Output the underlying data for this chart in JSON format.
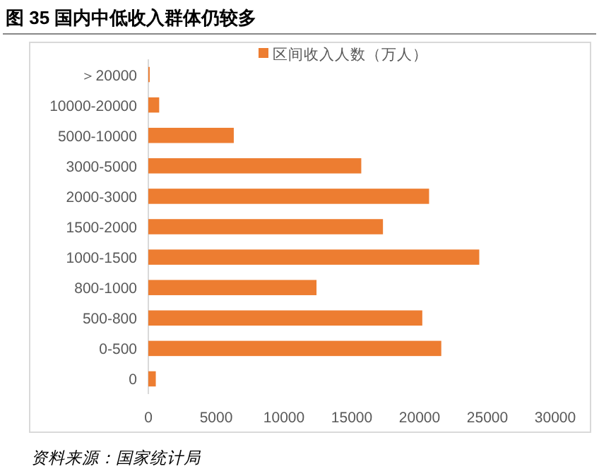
{
  "chart_data": {
    "type": "bar",
    "orientation": "horizontal",
    "title": "图 35 国内中低收入群体仍较多",
    "categories": [
      "＞20000",
      "10000-20000",
      "5000-10000",
      "3000-5000",
      "2000-3000",
      "1500-2000",
      "1000-1500",
      "800-1000",
      "500-800",
      "0-500",
      "0"
    ],
    "series": [
      {
        "name": "区间收入人数（万人）",
        "color": "#ed7d31",
        "values": [
          100,
          800,
          6300,
          15700,
          20700,
          17300,
          24400,
          12400,
          20200,
          21600,
          550
        ]
      }
    ],
    "xlim": [
      0,
      30000
    ],
    "xticks": [
      0,
      5000,
      10000,
      15000,
      20000,
      25000,
      30000
    ],
    "legend": "top",
    "grid": false,
    "annotations": [
      "资料来源：国家统计局"
    ]
  }
}
